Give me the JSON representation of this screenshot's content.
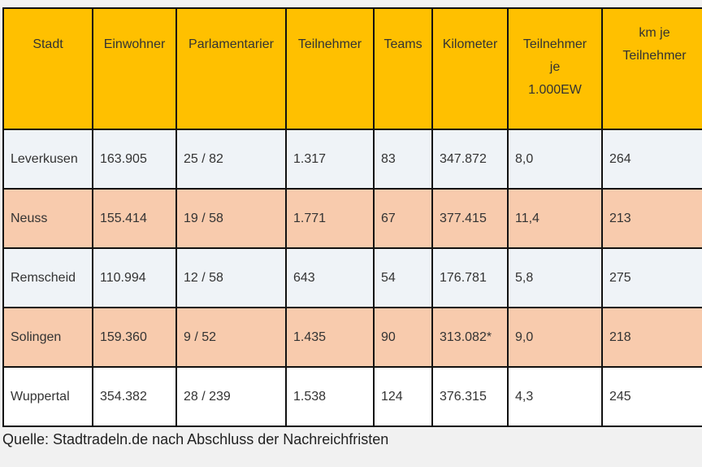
{
  "headers": [
    "Stadt",
    "Einwohner",
    "Parlamentarier",
    "Teilnehmer",
    "Teams",
    "Kilometer",
    "Teilnehmer je 1.000EW",
    "km je Teilnehmer"
  ],
  "rows": [
    [
      "Leverkusen",
      "163.905",
      "25 / 82",
      "1.317",
      "83",
      "347.872",
      "8,0",
      "264"
    ],
    [
      "Neuss",
      "155.414",
      "19 / 58",
      "1.771",
      "67",
      "377.415",
      "11,4",
      "213"
    ],
    [
      "Remscheid",
      "110.994",
      "12 / 58",
      "643",
      "54",
      "176.781",
      "5,8",
      "275"
    ],
    [
      "Solingen",
      "159.360",
      "9 / 52",
      "1.435",
      "90",
      "313.082*",
      "9,0",
      "218"
    ],
    [
      "Wuppertal",
      "354.382",
      "28 / 239",
      "1.538",
      "124",
      "376.315",
      "4,3",
      "245"
    ]
  ],
  "caption": "Quelle: Stadtradeln.de nach Abschluss der Nachreichfristen"
}
